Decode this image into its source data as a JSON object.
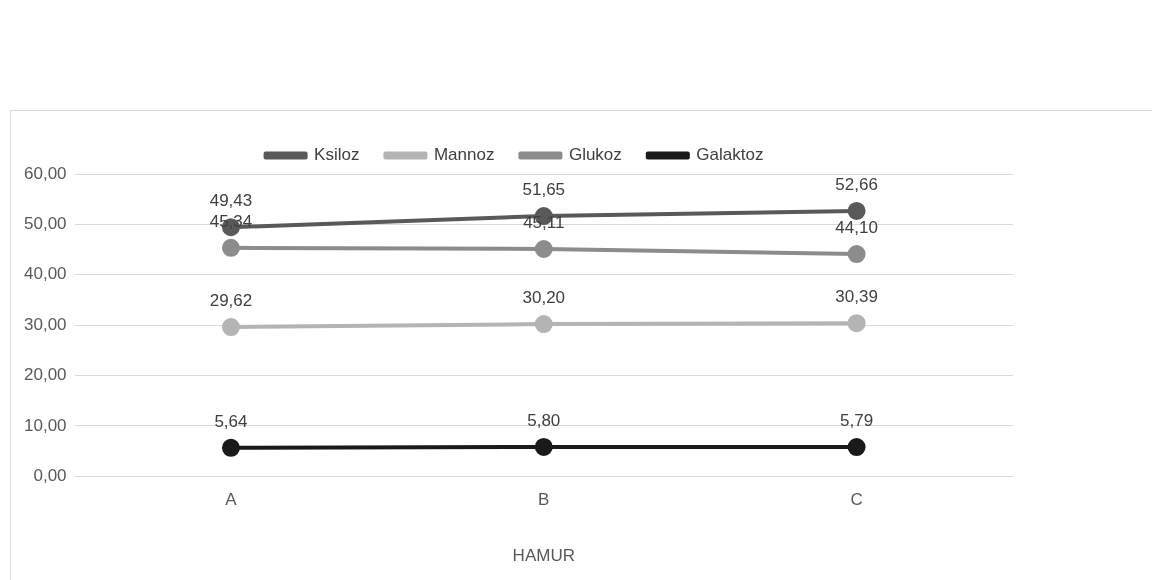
{
  "chart_data": {
    "type": "line",
    "xlabel": "HAMUR",
    "categories": [
      "A",
      "B",
      "C"
    ],
    "series": [
      {
        "name": "Ksiloz",
        "color": "#595959",
        "values": [
          49.43,
          51.65,
          52.66
        ],
        "value_labels": [
          "49,43",
          "51,65",
          "52,66"
        ]
      },
      {
        "name": "Mannoz",
        "color": "#b4b4b4",
        "values": [
          29.62,
          30.2,
          30.39
        ],
        "value_labels": [
          "29,62",
          "30,20",
          "30,39"
        ]
      },
      {
        "name": "Glukoz",
        "color": "#8c8c8c",
        "values": [
          45.34,
          45.11,
          44.1
        ],
        "value_labels": [
          "45,34",
          "45,11",
          "44,10"
        ]
      },
      {
        "name": "Galaktoz",
        "color": "#1a1a1a",
        "values": [
          5.64,
          5.8,
          5.79
        ],
        "value_labels": [
          "5,64",
          "5,80",
          "5,79"
        ]
      }
    ],
    "ylim": [
      0,
      60
    ],
    "yticks": [
      {
        "value": 0,
        "label": "0,00"
      },
      {
        "value": 10,
        "label": "10,00"
      },
      {
        "value": 20,
        "label": "20,00"
      },
      {
        "value": 30,
        "label": "30,00"
      },
      {
        "value": 40,
        "label": "40,00"
      },
      {
        "value": 50,
        "label": "50,00"
      },
      {
        "value": 60,
        "label": "60,00"
      }
    ],
    "grid": "y",
    "legend": "top",
    "marker": "circle",
    "line_style": "solid"
  }
}
